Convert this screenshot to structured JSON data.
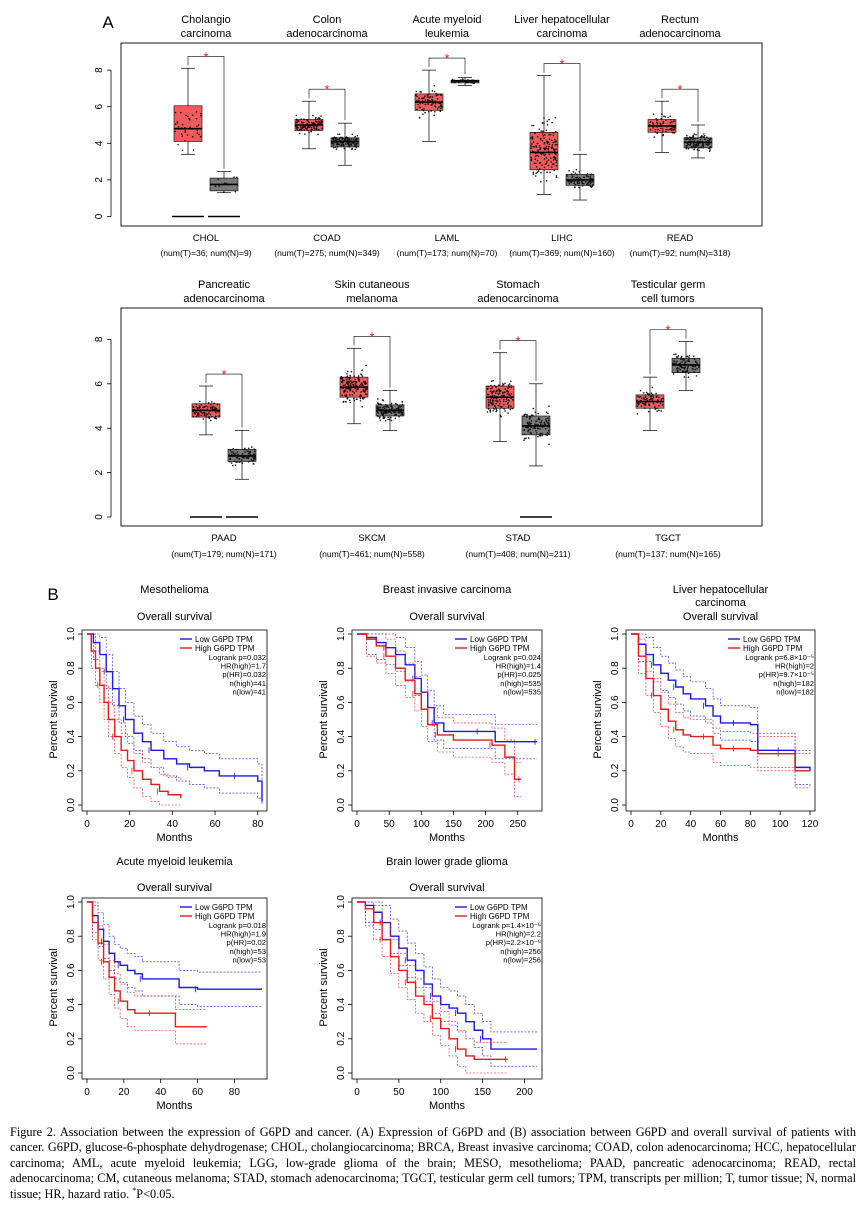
{
  "panel_labels": {
    "a": "A",
    "b": "B"
  },
  "boxplots": {
    "y_ticks": [
      "0",
      "2",
      "4",
      "6",
      "8"
    ],
    "sig_mark": "*",
    "tumor_color": "#f25b5b",
    "normal_color": "#7a7a7a",
    "rows": [
      {
        "panels": [
          {
            "title1": "Cholangio",
            "title2": "carcinoma",
            "code": "CHOL",
            "counts": "(num(T)=36; num(N)=9)",
            "tumor": {
              "min": 3.4,
              "q1": 4.1,
              "med": 4.8,
              "q3": 6.05,
              "max": 8.1
            },
            "normal": {
              "min": 1.3,
              "q1": 1.4,
              "med": 1.75,
              "q3": 2.1,
              "max": 2.45
            },
            "zero_tumor": true,
            "zero_normal": true,
            "n_tumor": 36,
            "n_normal": 9
          },
          {
            "title1": "Colon",
            "title2": "adenocarcinoma",
            "code": "COAD",
            "counts": "(num(T)=275; num(N)=349)",
            "tumor": {
              "min": 3.7,
              "q1": 4.7,
              "med": 5.0,
              "q3": 5.3,
              "max": 6.3
            },
            "normal": {
              "min": 2.8,
              "q1": 3.8,
              "med": 4.1,
              "q3": 4.3,
              "max": 5.1
            },
            "zero_tumor": false,
            "zero_normal": false,
            "n_tumor": 110,
            "n_normal": 120
          },
          {
            "title1": "Acute myeloid",
            "title2": "leukemia",
            "code": "LAML",
            "counts": "(num(T)=173; num(N)=70)",
            "tumor": {
              "min": 4.1,
              "q1": 5.8,
              "med": 6.25,
              "q3": 6.7,
              "max": 8.0
            },
            "normal": {
              "min": 7.15,
              "q1": 7.3,
              "med": 7.4,
              "q3": 7.45,
              "max": 7.6
            },
            "zero_tumor": false,
            "zero_normal": false,
            "n_tumor": 90,
            "n_normal": 45
          },
          {
            "title1": "Liver hepatocellular",
            "title2": "carcinoma",
            "code": "LIHC",
            "counts": "(num(T)=369; num(N)=160)",
            "tumor": {
              "min": 1.2,
              "q1": 2.55,
              "med": 3.5,
              "q3": 4.6,
              "max": 7.7
            },
            "normal": {
              "min": 0.9,
              "q1": 1.7,
              "med": 2.0,
              "q3": 2.3,
              "max": 3.4
            },
            "zero_tumor": false,
            "zero_normal": false,
            "n_tumor": 160,
            "n_normal": 90
          },
          {
            "title1": "Rectum",
            "title2": "adenocarcinoma",
            "code": "READ",
            "counts": "(num(T)=92; num(N)=318)",
            "tumor": {
              "min": 3.5,
              "q1": 4.6,
              "med": 4.95,
              "q3": 5.3,
              "max": 6.3
            },
            "normal": {
              "min": 3.2,
              "q1": 3.75,
              "med": 4.05,
              "q3": 4.3,
              "max": 5.0
            },
            "zero_tumor": false,
            "zero_normal": false,
            "n_tumor": 70,
            "n_normal": 120
          }
        ]
      },
      {
        "panels": [
          {
            "title1": "Pancreatic",
            "title2": "adenocarcinoma",
            "code": "PAAD",
            "counts": "(num(T)=179; num(N)=171)",
            "tumor": {
              "min": 3.7,
              "q1": 4.5,
              "med": 4.8,
              "q3": 5.1,
              "max": 5.9
            },
            "normal": {
              "min": 1.7,
              "q1": 2.5,
              "med": 2.75,
              "q3": 3.05,
              "max": 3.9
            },
            "zero_tumor": true,
            "zero_normal": true,
            "n_tumor": 90,
            "n_normal": 90
          },
          {
            "title1": "Skin cutaneous",
            "title2": "melanoma",
            "code": "SKCM",
            "counts": "(num(T)=461; num(N)=558)",
            "tumor": {
              "min": 4.2,
              "q1": 5.4,
              "med": 5.85,
              "q3": 6.3,
              "max": 7.6
            },
            "normal": {
              "min": 3.9,
              "q1": 4.55,
              "med": 4.8,
              "q3": 5.05,
              "max": 5.7
            },
            "zero_tumor": false,
            "zero_normal": false,
            "n_tumor": 160,
            "n_normal": 140
          },
          {
            "title1": "Stomach",
            "title2": "adenocarcinoma",
            "code": "STAD",
            "counts": "(num(T)=408; num(N)=211)",
            "tumor": {
              "min": 3.4,
              "q1": 4.9,
              "med": 5.4,
              "q3": 5.9,
              "max": 7.4
            },
            "normal": {
              "min": 2.3,
              "q1": 3.7,
              "med": 4.1,
              "q3": 4.55,
              "max": 6.0
            },
            "zero_tumor": false,
            "zero_normal": true,
            "n_tumor": 150,
            "n_normal": 110
          },
          {
            "title1": "Testicular germ",
            "title2": "cell tumors",
            "code": "TGCT",
            "counts": "(num(T)=137; num(N)=165)",
            "tumor": {
              "min": 3.9,
              "q1": 4.9,
              "med": 5.2,
              "q3": 5.5,
              "max": 6.3
            },
            "normal": {
              "min": 5.7,
              "q1": 6.5,
              "med": 6.85,
              "q3": 7.15,
              "max": 7.9
            },
            "zero_tumor": false,
            "zero_normal": false,
            "n_tumor": 80,
            "n_normal": 90
          }
        ]
      }
    ]
  },
  "km": {
    "y_ticks": [
      "0.0",
      "0.2",
      "0.4",
      "0.6",
      "0.8",
      "1.0"
    ],
    "y_label": "Percent survival",
    "x_label": "Months",
    "subtitle": "Overall survival",
    "legend_low": "Low G6PD TPM",
    "legend_high": "High G6PD TPM",
    "low_color": "#1a1ae6",
    "high_color": "#e6191b",
    "panels": [
      {
        "title1": "Mesothelioma",
        "title2": "",
        "x_ticks": [
          0,
          20,
          40,
          60,
          80
        ],
        "x_max": 82,
        "stats": [
          "Logrank p=0.032",
          "HR(high)=1.7",
          "p(HR)=0.032",
          "n(high)=41",
          "n(low)=41"
        ],
        "low": [
          [
            0,
            1
          ],
          [
            3,
            0.95
          ],
          [
            6,
            0.88
          ],
          [
            9,
            0.78
          ],
          [
            12,
            0.68
          ],
          [
            15,
            0.58
          ],
          [
            18,
            0.5
          ],
          [
            22,
            0.42
          ],
          [
            26,
            0.37
          ],
          [
            30,
            0.32
          ],
          [
            36,
            0.27
          ],
          [
            42,
            0.24
          ],
          [
            48,
            0.22
          ],
          [
            55,
            0.2
          ],
          [
            62,
            0.17
          ],
          [
            70,
            0.17
          ],
          [
            80,
            0.14
          ],
          [
            82,
            0.02
          ]
        ],
        "high": [
          [
            0,
            1
          ],
          [
            2,
            0.9
          ],
          [
            4,
            0.8
          ],
          [
            6,
            0.7
          ],
          [
            8,
            0.6
          ],
          [
            10,
            0.5
          ],
          [
            13,
            0.4
          ],
          [
            16,
            0.32
          ],
          [
            19,
            0.26
          ],
          [
            22,
            0.2
          ],
          [
            26,
            0.15
          ],
          [
            30,
            0.12
          ],
          [
            34,
            0.08
          ],
          [
            38,
            0.06
          ],
          [
            44,
            0.04
          ]
        ]
      },
      {
        "title1": "Breast invasive carcinoma",
        "title2": "",
        "x_ticks": [
          0,
          50,
          100,
          150,
          200,
          250
        ],
        "x_max": 280,
        "stats": [
          "Logrank p=0.024",
          "HR(high)=1.4",
          "p(HR)=0.025",
          "n(high)=535",
          "n(low)=535"
        ],
        "low": [
          [
            0,
            1
          ],
          [
            15,
            0.98
          ],
          [
            30,
            0.95
          ],
          [
            45,
            0.92
          ],
          [
            60,
            0.88
          ],
          [
            75,
            0.82
          ],
          [
            90,
            0.74
          ],
          [
            100,
            0.66
          ],
          [
            110,
            0.57
          ],
          [
            120,
            0.48
          ],
          [
            135,
            0.43
          ],
          [
            160,
            0.43
          ],
          [
            190,
            0.43
          ],
          [
            215,
            0.37
          ],
          [
            240,
            0.37
          ],
          [
            280,
            0.37
          ]
        ],
        "high": [
          [
            0,
            1
          ],
          [
            15,
            0.97
          ],
          [
            30,
            0.93
          ],
          [
            45,
            0.87
          ],
          [
            60,
            0.8
          ],
          [
            75,
            0.73
          ],
          [
            90,
            0.65
          ],
          [
            100,
            0.56
          ],
          [
            110,
            0.47
          ],
          [
            125,
            0.41
          ],
          [
            150,
            0.38
          ],
          [
            180,
            0.38
          ],
          [
            210,
            0.35
          ],
          [
            230,
            0.28
          ],
          [
            245,
            0.15
          ],
          [
            255,
            0.15
          ]
        ]
      },
      {
        "title1": "Liver hepatocellular",
        "title2": "carcinoma",
        "x_ticks": [
          0,
          20,
          40,
          60,
          80,
          100,
          120
        ],
        "x_max": 120,
        "stats": [
          "Logrank p=6.8×10⁻⁵",
          "HR(high)=2",
          "p(HR)=9.7×10⁻⁵",
          "n(high)=182",
          "n(low)=182"
        ],
        "low": [
          [
            0,
            1
          ],
          [
            5,
            0.94
          ],
          [
            10,
            0.88
          ],
          [
            15,
            0.82
          ],
          [
            20,
            0.77
          ],
          [
            25,
            0.73
          ],
          [
            30,
            0.69
          ],
          [
            35,
            0.65
          ],
          [
            40,
            0.62
          ],
          [
            50,
            0.58
          ],
          [
            55,
            0.52
          ],
          [
            60,
            0.48
          ],
          [
            70,
            0.48
          ],
          [
            80,
            0.47
          ],
          [
            85,
            0.32
          ],
          [
            100,
            0.32
          ],
          [
            110,
            0.22
          ],
          [
            120,
            0.2
          ]
        ],
        "high": [
          [
            0,
            1
          ],
          [
            5,
            0.87
          ],
          [
            10,
            0.74
          ],
          [
            15,
            0.64
          ],
          [
            20,
            0.56
          ],
          [
            25,
            0.49
          ],
          [
            30,
            0.44
          ],
          [
            35,
            0.41
          ],
          [
            40,
            0.4
          ],
          [
            50,
            0.4
          ],
          [
            55,
            0.35
          ],
          [
            60,
            0.33
          ],
          [
            70,
            0.33
          ],
          [
            80,
            0.32
          ],
          [
            85,
            0.3
          ],
          [
            100,
            0.3
          ],
          [
            110,
            0.2
          ],
          [
            120,
            0.2
          ]
        ]
      },
      {
        "title1": "Acute myeloid leukemia",
        "title2": "",
        "x_ticks": [
          0,
          20,
          40,
          60,
          80
        ],
        "x_max": 95,
        "stats": [
          "Logrank p=0.018",
          "HR(high)=1.9",
          "p(HR)=0.02",
          "n(high)=53",
          "n(low)=53"
        ],
        "low": [
          [
            0,
            1
          ],
          [
            3,
            0.92
          ],
          [
            6,
            0.84
          ],
          [
            9,
            0.77
          ],
          [
            12,
            0.7
          ],
          [
            15,
            0.65
          ],
          [
            18,
            0.63
          ],
          [
            22,
            0.6
          ],
          [
            26,
            0.58
          ],
          [
            30,
            0.55
          ],
          [
            40,
            0.55
          ],
          [
            50,
            0.5
          ],
          [
            60,
            0.49
          ],
          [
            95,
            0.49
          ]
        ],
        "high": [
          [
            0,
            1
          ],
          [
            3,
            0.88
          ],
          [
            6,
            0.76
          ],
          [
            9,
            0.65
          ],
          [
            12,
            0.56
          ],
          [
            15,
            0.48
          ],
          [
            18,
            0.42
          ],
          [
            22,
            0.37
          ],
          [
            26,
            0.35
          ],
          [
            35,
            0.35
          ],
          [
            48,
            0.27
          ],
          [
            65,
            0.27
          ]
        ]
      },
      {
        "title1": "Brain lower grade glioma",
        "title2": "",
        "x_ticks": [
          0,
          50,
          100,
          150,
          200
        ],
        "x_max": 215,
        "stats": [
          "Logrank p=1.4×10⁻⁶",
          "HR(high)=2.2",
          "p(HR)=2.2×10⁻⁶",
          "n(high)=256",
          "n(low)=256"
        ],
        "low": [
          [
            0,
            1
          ],
          [
            10,
            0.98
          ],
          [
            20,
            0.94
          ],
          [
            30,
            0.88
          ],
          [
            40,
            0.8
          ],
          [
            50,
            0.73
          ],
          [
            60,
            0.66
          ],
          [
            70,
            0.6
          ],
          [
            80,
            0.52
          ],
          [
            90,
            0.45
          ],
          [
            100,
            0.4
          ],
          [
            110,
            0.38
          ],
          [
            120,
            0.35
          ],
          [
            130,
            0.3
          ],
          [
            140,
            0.25
          ],
          [
            150,
            0.2
          ],
          [
            160,
            0.14
          ],
          [
            215,
            0.14
          ]
        ],
        "high": [
          [
            0,
            1
          ],
          [
            10,
            0.96
          ],
          [
            20,
            0.88
          ],
          [
            30,
            0.78
          ],
          [
            40,
            0.68
          ],
          [
            50,
            0.6
          ],
          [
            60,
            0.53
          ],
          [
            70,
            0.45
          ],
          [
            80,
            0.4
          ],
          [
            90,
            0.32
          ],
          [
            100,
            0.26
          ],
          [
            110,
            0.2
          ],
          [
            120,
            0.14
          ],
          [
            130,
            0.1
          ],
          [
            140,
            0.08
          ],
          [
            180,
            0.08
          ]
        ]
      }
    ]
  },
  "caption": {
    "text": "Figure 2. Association between the expression of G6PD and cancer. (A) Expression of G6PD and (B) association between G6PD and overall survival of patients with cancer. G6PD, glucose-6-phosphate dehydrogenase; CHOL, cholangiocarcinoma; BRCA, Breast invasive carcinoma; COAD, colon adenocarcinoma; HCC, hepatocellular carcinoma; AML, acute myeloid leukemia; LGG, low-grade glioma of the brain; MESO, mesothelioma; PAAD, pancreatic adenocarcinoma; READ, rectal adenocarcinoma; CM, cutaneous melanoma; STAD, stomach adenocarcinoma; TGCT, testicular germ cell tumors; TPM, transcripts per million; T, tumor tissue; N, normal tissue; HR, hazard ratio.",
    "sig_symbol": "*",
    "sig_text": "P<0.05."
  }
}
